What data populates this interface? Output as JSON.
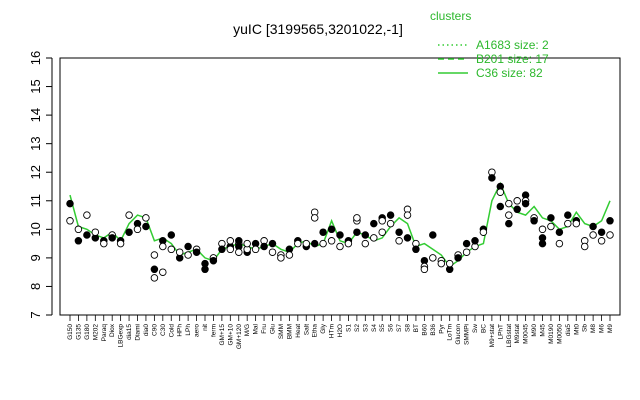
{
  "chart_data": {
    "type": "line",
    "title": "yuIC [3199565,3201022,-1]",
    "xlabel": "",
    "ylabel": "",
    "ylim": [
      7,
      16
    ],
    "y_ticks": [
      7,
      8,
      9,
      10,
      11,
      12,
      13,
      14,
      15,
      16
    ],
    "grid": false,
    "legend_title": "clusters",
    "legend_position": "top-right",
    "legend": [
      {
        "label": "A1683 size: 2",
        "style": "dotted"
      },
      {
        "label": "B201 size: 17",
        "style": "dashed"
      },
      {
        "label": "C36 size: 82",
        "style": "solid"
      }
    ],
    "line_color": "#33cc33",
    "categories": [
      "G150",
      "G135",
      "G180",
      "M202",
      "Paraq",
      "Diox",
      "LBGexp",
      "dia15",
      "Diami",
      "dia0",
      "C90",
      "C30",
      "Cold",
      "HPh",
      "LPh",
      "aero",
      "nit",
      "ferm",
      "GM+15",
      "GM+10",
      "GM+120",
      "M/G",
      "Mal",
      "Fru",
      "Glu",
      "SMM",
      "BMM",
      "Heat",
      "Salt",
      "Etha",
      "Gly",
      "HTm",
      "H2O",
      "S1",
      "S2",
      "S3",
      "S4",
      "S5",
      "S6",
      "S7",
      "S8",
      "BT",
      "B60",
      "B36",
      "Pyr",
      "LoTm",
      "Glucon",
      "SMMPi",
      "Sw",
      "BC",
      "M9+stat",
      "LPhT",
      "LBGstat",
      "M9stat",
      "M0045",
      "M90",
      "M45",
      "M0190",
      "M0050",
      "dia5",
      "Mt0",
      "Sb",
      "M8",
      "M6",
      "M9"
    ],
    "series": [
      {
        "values": [
          11.2,
          10.1,
          10.0,
          9.8,
          9.7,
          9.9,
          9.6,
          10.2,
          10.5,
          10.4,
          9.6,
          9.7,
          9.5,
          9.1,
          9.2,
          9.3,
          9.0,
          8.9,
          9.3,
          9.4,
          9.5,
          9.4,
          9.3,
          9.4,
          9.5,
          9.3,
          9.2,
          9.5,
          9.6,
          9.4,
          9.5,
          10.3,
          9.6,
          9.5,
          9.9,
          9.8,
          9.6,
          9.7,
          10.1,
          10.4,
          10.2,
          9.4,
          9.5,
          9.3,
          9.1,
          8.7,
          8.9,
          9.2,
          9.4,
          9.5,
          11.0,
          11.6,
          10.9,
          10.6,
          10.5,
          10.8,
          10.4,
          10.3,
          10.0,
          10.1,
          10.6,
          10.2,
          10.1,
          10.3,
          11.0
        ]
      }
    ],
    "points": [
      {
        "i": 0,
        "y": 10.9,
        "f": 1
      },
      {
        "i": 0,
        "y": 10.3,
        "f": 0
      },
      {
        "i": 1,
        "y": 9.6,
        "f": 1
      },
      {
        "i": 1,
        "y": 10.0,
        "f": 0
      },
      {
        "i": 2,
        "y": 9.8,
        "f": 1
      },
      {
        "i": 2,
        "y": 10.5,
        "f": 0
      },
      {
        "i": 3,
        "y": 9.7,
        "f": 1
      },
      {
        "i": 3,
        "y": 9.9,
        "f": 0
      },
      {
        "i": 4,
        "y": 9.6,
        "f": 1
      },
      {
        "i": 4,
        "y": 9.5,
        "f": 0
      },
      {
        "i": 5,
        "y": 9.8,
        "f": 0
      },
      {
        "i": 5,
        "y": 9.7,
        "f": 1
      },
      {
        "i": 6,
        "y": 9.6,
        "f": 1
      },
      {
        "i": 6,
        "y": 9.5,
        "f": 0
      },
      {
        "i": 7,
        "y": 10.5,
        "f": 0
      },
      {
        "i": 7,
        "y": 9.9,
        "f": 1
      },
      {
        "i": 8,
        "y": 10.2,
        "f": 1
      },
      {
        "i": 8,
        "y": 10.0,
        "f": 0
      },
      {
        "i": 9,
        "y": 10.4,
        "f": 0
      },
      {
        "i": 9,
        "y": 10.1,
        "f": 1
      },
      {
        "i": 10,
        "y": 8.6,
        "f": 1
      },
      {
        "i": 10,
        "y": 8.3,
        "f": 0
      },
      {
        "i": 10,
        "y": 9.1,
        "f": 0
      },
      {
        "i": 11,
        "y": 9.6,
        "f": 1
      },
      {
        "i": 11,
        "y": 8.5,
        "f": 0
      },
      {
        "i": 11,
        "y": 9.4,
        "f": 0
      },
      {
        "i": 12,
        "y": 9.8,
        "f": 1
      },
      {
        "i": 12,
        "y": 9.3,
        "f": 0
      },
      {
        "i": 13,
        "y": 9.0,
        "f": 1
      },
      {
        "i": 13,
        "y": 9.2,
        "f": 0
      },
      {
        "i": 14,
        "y": 9.1,
        "f": 0
      },
      {
        "i": 14,
        "y": 9.4,
        "f": 1
      },
      {
        "i": 15,
        "y": 9.3,
        "f": 0
      },
      {
        "i": 15,
        "y": 9.2,
        "f": 1
      },
      {
        "i": 16,
        "y": 8.8,
        "f": 1
      },
      {
        "i": 16,
        "y": 8.6,
        "f": 1
      },
      {
        "i": 17,
        "y": 9.0,
        "f": 0
      },
      {
        "i": 17,
        "y": 8.9,
        "f": 1
      },
      {
        "i": 18,
        "y": 9.5,
        "f": 0
      },
      {
        "i": 18,
        "y": 9.3,
        "f": 1
      },
      {
        "i": 19,
        "y": 9.4,
        "f": 1
      },
      {
        "i": 19,
        "y": 9.6,
        "f": 0
      },
      {
        "i": 19,
        "y": 9.3,
        "f": 0
      },
      {
        "i": 20,
        "y": 9.5,
        "f": 0
      },
      {
        "i": 20,
        "y": 9.4,
        "f": 1
      },
      {
        "i": 20,
        "y": 9.2,
        "f": 0
      },
      {
        "i": 20,
        "y": 9.6,
        "f": 1
      },
      {
        "i": 21,
        "y": 9.2,
        "f": 1
      },
      {
        "i": 21,
        "y": 9.3,
        "f": 0
      },
      {
        "i": 21,
        "y": 9.5,
        "f": 0
      },
      {
        "i": 22,
        "y": 9.5,
        "f": 1
      },
      {
        "i": 22,
        "y": 9.3,
        "f": 0
      },
      {
        "i": 23,
        "y": 9.6,
        "f": 0
      },
      {
        "i": 23,
        "y": 9.4,
        "f": 1
      },
      {
        "i": 24,
        "y": 9.2,
        "f": 0
      },
      {
        "i": 24,
        "y": 9.5,
        "f": 1
      },
      {
        "i": 25,
        "y": 9.1,
        "f": 0
      },
      {
        "i": 25,
        "y": 9.0,
        "f": 0
      },
      {
        "i": 26,
        "y": 9.3,
        "f": 1
      },
      {
        "i": 26,
        "y": 9.1,
        "f": 0
      },
      {
        "i": 27,
        "y": 9.6,
        "f": 1
      },
      {
        "i": 27,
        "y": 9.5,
        "f": 0
      },
      {
        "i": 28,
        "y": 9.4,
        "f": 1
      },
      {
        "i": 28,
        "y": 9.5,
        "f": 0
      },
      {
        "i": 29,
        "y": 10.6,
        "f": 0
      },
      {
        "i": 29,
        "y": 10.4,
        "f": 0
      },
      {
        "i": 29,
        "y": 9.5,
        "f": 1
      },
      {
        "i": 30,
        "y": 9.5,
        "f": 0
      },
      {
        "i": 30,
        "y": 9.9,
        "f": 1
      },
      {
        "i": 31,
        "y": 10.0,
        "f": 1
      },
      {
        "i": 31,
        "y": 9.6,
        "f": 0
      },
      {
        "i": 32,
        "y": 9.8,
        "f": 1
      },
      {
        "i": 32,
        "y": 9.4,
        "f": 0
      },
      {
        "i": 33,
        "y": 9.6,
        "f": 1
      },
      {
        "i": 33,
        "y": 9.5,
        "f": 0
      },
      {
        "i": 34,
        "y": 10.3,
        "f": 0
      },
      {
        "i": 34,
        "y": 10.4,
        "f": 0
      },
      {
        "i": 34,
        "y": 9.9,
        "f": 1
      },
      {
        "i": 35,
        "y": 9.5,
        "f": 0
      },
      {
        "i": 35,
        "y": 9.8,
        "f": 1
      },
      {
        "i": 36,
        "y": 10.2,
        "f": 1
      },
      {
        "i": 36,
        "y": 9.7,
        "f": 0
      },
      {
        "i": 37,
        "y": 10.4,
        "f": 1
      },
      {
        "i": 37,
        "y": 10.3,
        "f": 0
      },
      {
        "i": 37,
        "y": 9.9,
        "f": 0
      },
      {
        "i": 38,
        "y": 10.5,
        "f": 1
      },
      {
        "i": 38,
        "y": 10.2,
        "f": 0
      },
      {
        "i": 39,
        "y": 9.9,
        "f": 1
      },
      {
        "i": 39,
        "y": 9.6,
        "f": 0
      },
      {
        "i": 40,
        "y": 10.7,
        "f": 0
      },
      {
        "i": 40,
        "y": 10.5,
        "f": 0
      },
      {
        "i": 40,
        "y": 9.7,
        "f": 1
      },
      {
        "i": 41,
        "y": 9.5,
        "f": 0
      },
      {
        "i": 41,
        "y": 9.3,
        "f": 1
      },
      {
        "i": 42,
        "y": 8.9,
        "f": 1
      },
      {
        "i": 42,
        "y": 8.7,
        "f": 0
      },
      {
        "i": 42,
        "y": 8.6,
        "f": 0
      },
      {
        "i": 43,
        "y": 9.8,
        "f": 1
      },
      {
        "i": 43,
        "y": 9.0,
        "f": 0
      },
      {
        "i": 44,
        "y": 8.9,
        "f": 0
      },
      {
        "i": 44,
        "y": 8.8,
        "f": 0
      },
      {
        "i": 45,
        "y": 8.6,
        "f": 1
      },
      {
        "i": 45,
        "y": 8.8,
        "f": 0
      },
      {
        "i": 46,
        "y": 9.1,
        "f": 0
      },
      {
        "i": 46,
        "y": 9.0,
        "f": 1
      },
      {
        "i": 47,
        "y": 9.5,
        "f": 1
      },
      {
        "i": 47,
        "y": 9.2,
        "f": 0
      },
      {
        "i": 48,
        "y": 9.4,
        "f": 0
      },
      {
        "i": 48,
        "y": 9.6,
        "f": 1
      },
      {
        "i": 49,
        "y": 10.0,
        "f": 1
      },
      {
        "i": 49,
        "y": 9.9,
        "f": 0
      },
      {
        "i": 50,
        "y": 12.0,
        "f": 0
      },
      {
        "i": 50,
        "y": 11.8,
        "f": 1
      },
      {
        "i": 51,
        "y": 11.5,
        "f": 1
      },
      {
        "i": 51,
        "y": 11.3,
        "f": 0
      },
      {
        "i": 51,
        "y": 10.8,
        "f": 1
      },
      {
        "i": 52,
        "y": 10.9,
        "f": 0
      },
      {
        "i": 52,
        "y": 10.5,
        "f": 0
      },
      {
        "i": 52,
        "y": 10.2,
        "f": 1
      },
      {
        "i": 53,
        "y": 11.0,
        "f": 0
      },
      {
        "i": 53,
        "y": 10.7,
        "f": 1
      },
      {
        "i": 54,
        "y": 11.2,
        "f": 1
      },
      {
        "i": 54,
        "y": 11.0,
        "f": 0
      },
      {
        "i": 54,
        "y": 10.9,
        "f": 1
      },
      {
        "i": 55,
        "y": 10.4,
        "f": 0
      },
      {
        "i": 55,
        "y": 10.3,
        "f": 1
      },
      {
        "i": 56,
        "y": 9.7,
        "f": 1
      },
      {
        "i": 56,
        "y": 9.5,
        "f": 1
      },
      {
        "i": 56,
        "y": 10.0,
        "f": 0
      },
      {
        "i": 57,
        "y": 10.4,
        "f": 1
      },
      {
        "i": 57,
        "y": 10.1,
        "f": 0
      },
      {
        "i": 58,
        "y": 9.9,
        "f": 1
      },
      {
        "i": 58,
        "y": 9.5,
        "f": 0
      },
      {
        "i": 59,
        "y": 10.5,
        "f": 1
      },
      {
        "i": 59,
        "y": 10.2,
        "f": 0
      },
      {
        "i": 60,
        "y": 10.3,
        "f": 1
      },
      {
        "i": 60,
        "y": 10.2,
        "f": 0
      },
      {
        "i": 61,
        "y": 9.6,
        "f": 0
      },
      {
        "i": 61,
        "y": 9.4,
        "f": 0
      },
      {
        "i": 62,
        "y": 10.1,
        "f": 1
      },
      {
        "i": 62,
        "y": 9.8,
        "f": 0
      },
      {
        "i": 63,
        "y": 9.9,
        "f": 1
      },
      {
        "i": 63,
        "y": 9.6,
        "f": 0
      },
      {
        "i": 64,
        "y": 10.3,
        "f": 1
      },
      {
        "i": 64,
        "y": 9.8,
        "f": 0
      }
    ]
  }
}
